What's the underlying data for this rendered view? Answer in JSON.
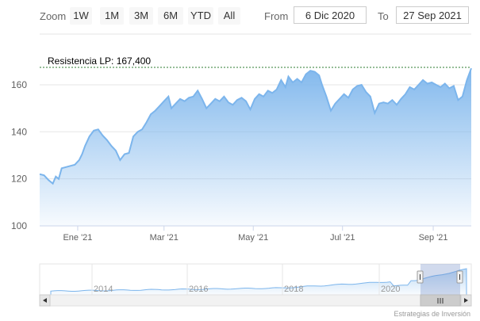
{
  "toolbar": {
    "zoom_label": "Zoom",
    "zoom_buttons": [
      "1W",
      "1M",
      "3M",
      "6M",
      "YTD",
      "All"
    ],
    "from_label": "From",
    "from_value": "6 Dic 2020",
    "to_label": "To",
    "to_value": "27 Sep 2021"
  },
  "resistance": {
    "label": "Resistencia LP: 167,400",
    "value": 167.4
  },
  "credits": "Estrategias de Inversión",
  "colors": {
    "line": "#7cb5ec",
    "fill_top": "#7cb5ec",
    "resistance_line": "#2e7d32"
  },
  "chart_data": {
    "type": "area",
    "ylim": [
      100,
      167.4
    ],
    "yticks": [
      100,
      120,
      140,
      160
    ],
    "ytick_labels": [
      "100",
      "120",
      "140",
      "160"
    ],
    "xlim": [
      "2020-12-06",
      "2021-09-27"
    ],
    "xticks": [
      "2021-01-01",
      "2021-03-01",
      "2021-05-01",
      "2021-07-01",
      "2021-09-01"
    ],
    "xtick_labels": [
      "Ene '21",
      "Mar '21",
      "May '21",
      "Jul '21",
      "Sep '21"
    ],
    "points": [
      [
        "2020-12-06",
        122.0
      ],
      [
        "2020-12-09",
        121.5
      ],
      [
        "2020-12-12",
        119.5
      ],
      [
        "2020-12-15",
        118.0
      ],
      [
        "2020-12-17",
        121.0
      ],
      [
        "2020-12-19",
        120.0
      ],
      [
        "2020-12-21",
        124.5
      ],
      [
        "2020-12-24",
        125.0
      ],
      [
        "2020-12-27",
        125.5
      ],
      [
        "2020-12-30",
        126.0
      ],
      [
        "2021-01-02",
        128.0
      ],
      [
        "2021-01-04",
        130.5
      ],
      [
        "2021-01-06",
        134.0
      ],
      [
        "2021-01-09",
        138.0
      ],
      [
        "2021-01-12",
        140.5
      ],
      [
        "2021-01-15",
        141.0
      ],
      [
        "2021-01-18",
        138.5
      ],
      [
        "2021-01-21",
        136.5
      ],
      [
        "2021-01-24",
        134.0
      ],
      [
        "2021-01-27",
        132.0
      ],
      [
        "2021-01-30",
        128.0
      ],
      [
        "2021-02-02",
        130.5
      ],
      [
        "2021-02-05",
        131.0
      ],
      [
        "2021-02-08",
        138.0
      ],
      [
        "2021-02-11",
        140.0
      ],
      [
        "2021-02-14",
        141.0
      ],
      [
        "2021-02-17",
        144.0
      ],
      [
        "2021-02-20",
        147.5
      ],
      [
        "2021-02-23",
        149.0
      ],
      [
        "2021-02-26",
        151.0
      ],
      [
        "2021-03-01",
        153.0
      ],
      [
        "2021-03-04",
        155.0
      ],
      [
        "2021-03-06",
        150.0
      ],
      [
        "2021-03-09",
        152.0
      ],
      [
        "2021-03-12",
        154.0
      ],
      [
        "2021-03-15",
        153.0
      ],
      [
        "2021-03-18",
        154.5
      ],
      [
        "2021-03-21",
        155.0
      ],
      [
        "2021-03-24",
        157.5
      ],
      [
        "2021-03-27",
        154.0
      ],
      [
        "2021-03-30",
        150.0
      ],
      [
        "2021-04-02",
        152.0
      ],
      [
        "2021-04-05",
        154.0
      ],
      [
        "2021-04-08",
        153.0
      ],
      [
        "2021-04-11",
        155.0
      ],
      [
        "2021-04-14",
        152.5
      ],
      [
        "2021-04-17",
        151.5
      ],
      [
        "2021-04-20",
        153.5
      ],
      [
        "2021-04-23",
        154.5
      ],
      [
        "2021-04-26",
        153.0
      ],
      [
        "2021-04-29",
        149.5
      ],
      [
        "2021-05-02",
        154.0
      ],
      [
        "2021-05-05",
        156.0
      ],
      [
        "2021-05-08",
        155.0
      ],
      [
        "2021-05-11",
        157.5
      ],
      [
        "2021-05-14",
        156.5
      ],
      [
        "2021-05-17",
        158.0
      ],
      [
        "2021-05-20",
        162.0
      ],
      [
        "2021-05-23",
        159.0
      ],
      [
        "2021-05-25",
        163.5
      ],
      [
        "2021-05-28",
        161.0
      ],
      [
        "2021-05-31",
        162.5
      ],
      [
        "2021-06-03",
        161.0
      ],
      [
        "2021-06-06",
        164.5
      ],
      [
        "2021-06-09",
        166.0
      ],
      [
        "2021-06-12",
        165.5
      ],
      [
        "2021-06-15",
        164.0
      ],
      [
        "2021-06-17",
        160.0
      ],
      [
        "2021-06-20",
        155.0
      ],
      [
        "2021-06-23",
        149.0
      ],
      [
        "2021-06-26",
        152.0
      ],
      [
        "2021-06-29",
        154.0
      ],
      [
        "2021-07-02",
        156.0
      ],
      [
        "2021-07-05",
        154.5
      ],
      [
        "2021-07-08",
        158.0
      ],
      [
        "2021-07-11",
        159.5
      ],
      [
        "2021-07-14",
        160.0
      ],
      [
        "2021-07-17",
        157.0
      ],
      [
        "2021-07-20",
        155.0
      ],
      [
        "2021-07-23",
        148.0
      ],
      [
        "2021-07-26",
        152.0
      ],
      [
        "2021-07-29",
        152.5
      ],
      [
        "2021-08-01",
        152.0
      ],
      [
        "2021-08-04",
        153.5
      ],
      [
        "2021-08-07",
        151.5
      ],
      [
        "2021-08-10",
        154.0
      ],
      [
        "2021-08-13",
        156.0
      ],
      [
        "2021-08-16",
        159.0
      ],
      [
        "2021-08-19",
        158.0
      ],
      [
        "2021-08-22",
        160.0
      ],
      [
        "2021-08-25",
        162.0
      ],
      [
        "2021-08-28",
        160.5
      ],
      [
        "2021-08-31",
        161.0
      ],
      [
        "2021-09-03",
        160.0
      ],
      [
        "2021-09-06",
        159.0
      ],
      [
        "2021-09-09",
        160.5
      ],
      [
        "2021-09-12",
        158.5
      ],
      [
        "2021-09-15",
        159.5
      ],
      [
        "2021-09-18",
        153.5
      ],
      [
        "2021-09-21",
        155.0
      ],
      [
        "2021-09-24",
        162.0
      ],
      [
        "2021-09-27",
        167.0
      ]
    ]
  },
  "navigator": {
    "year_labels": [
      "2014",
      "2016",
      "2018",
      "2020"
    ]
  }
}
